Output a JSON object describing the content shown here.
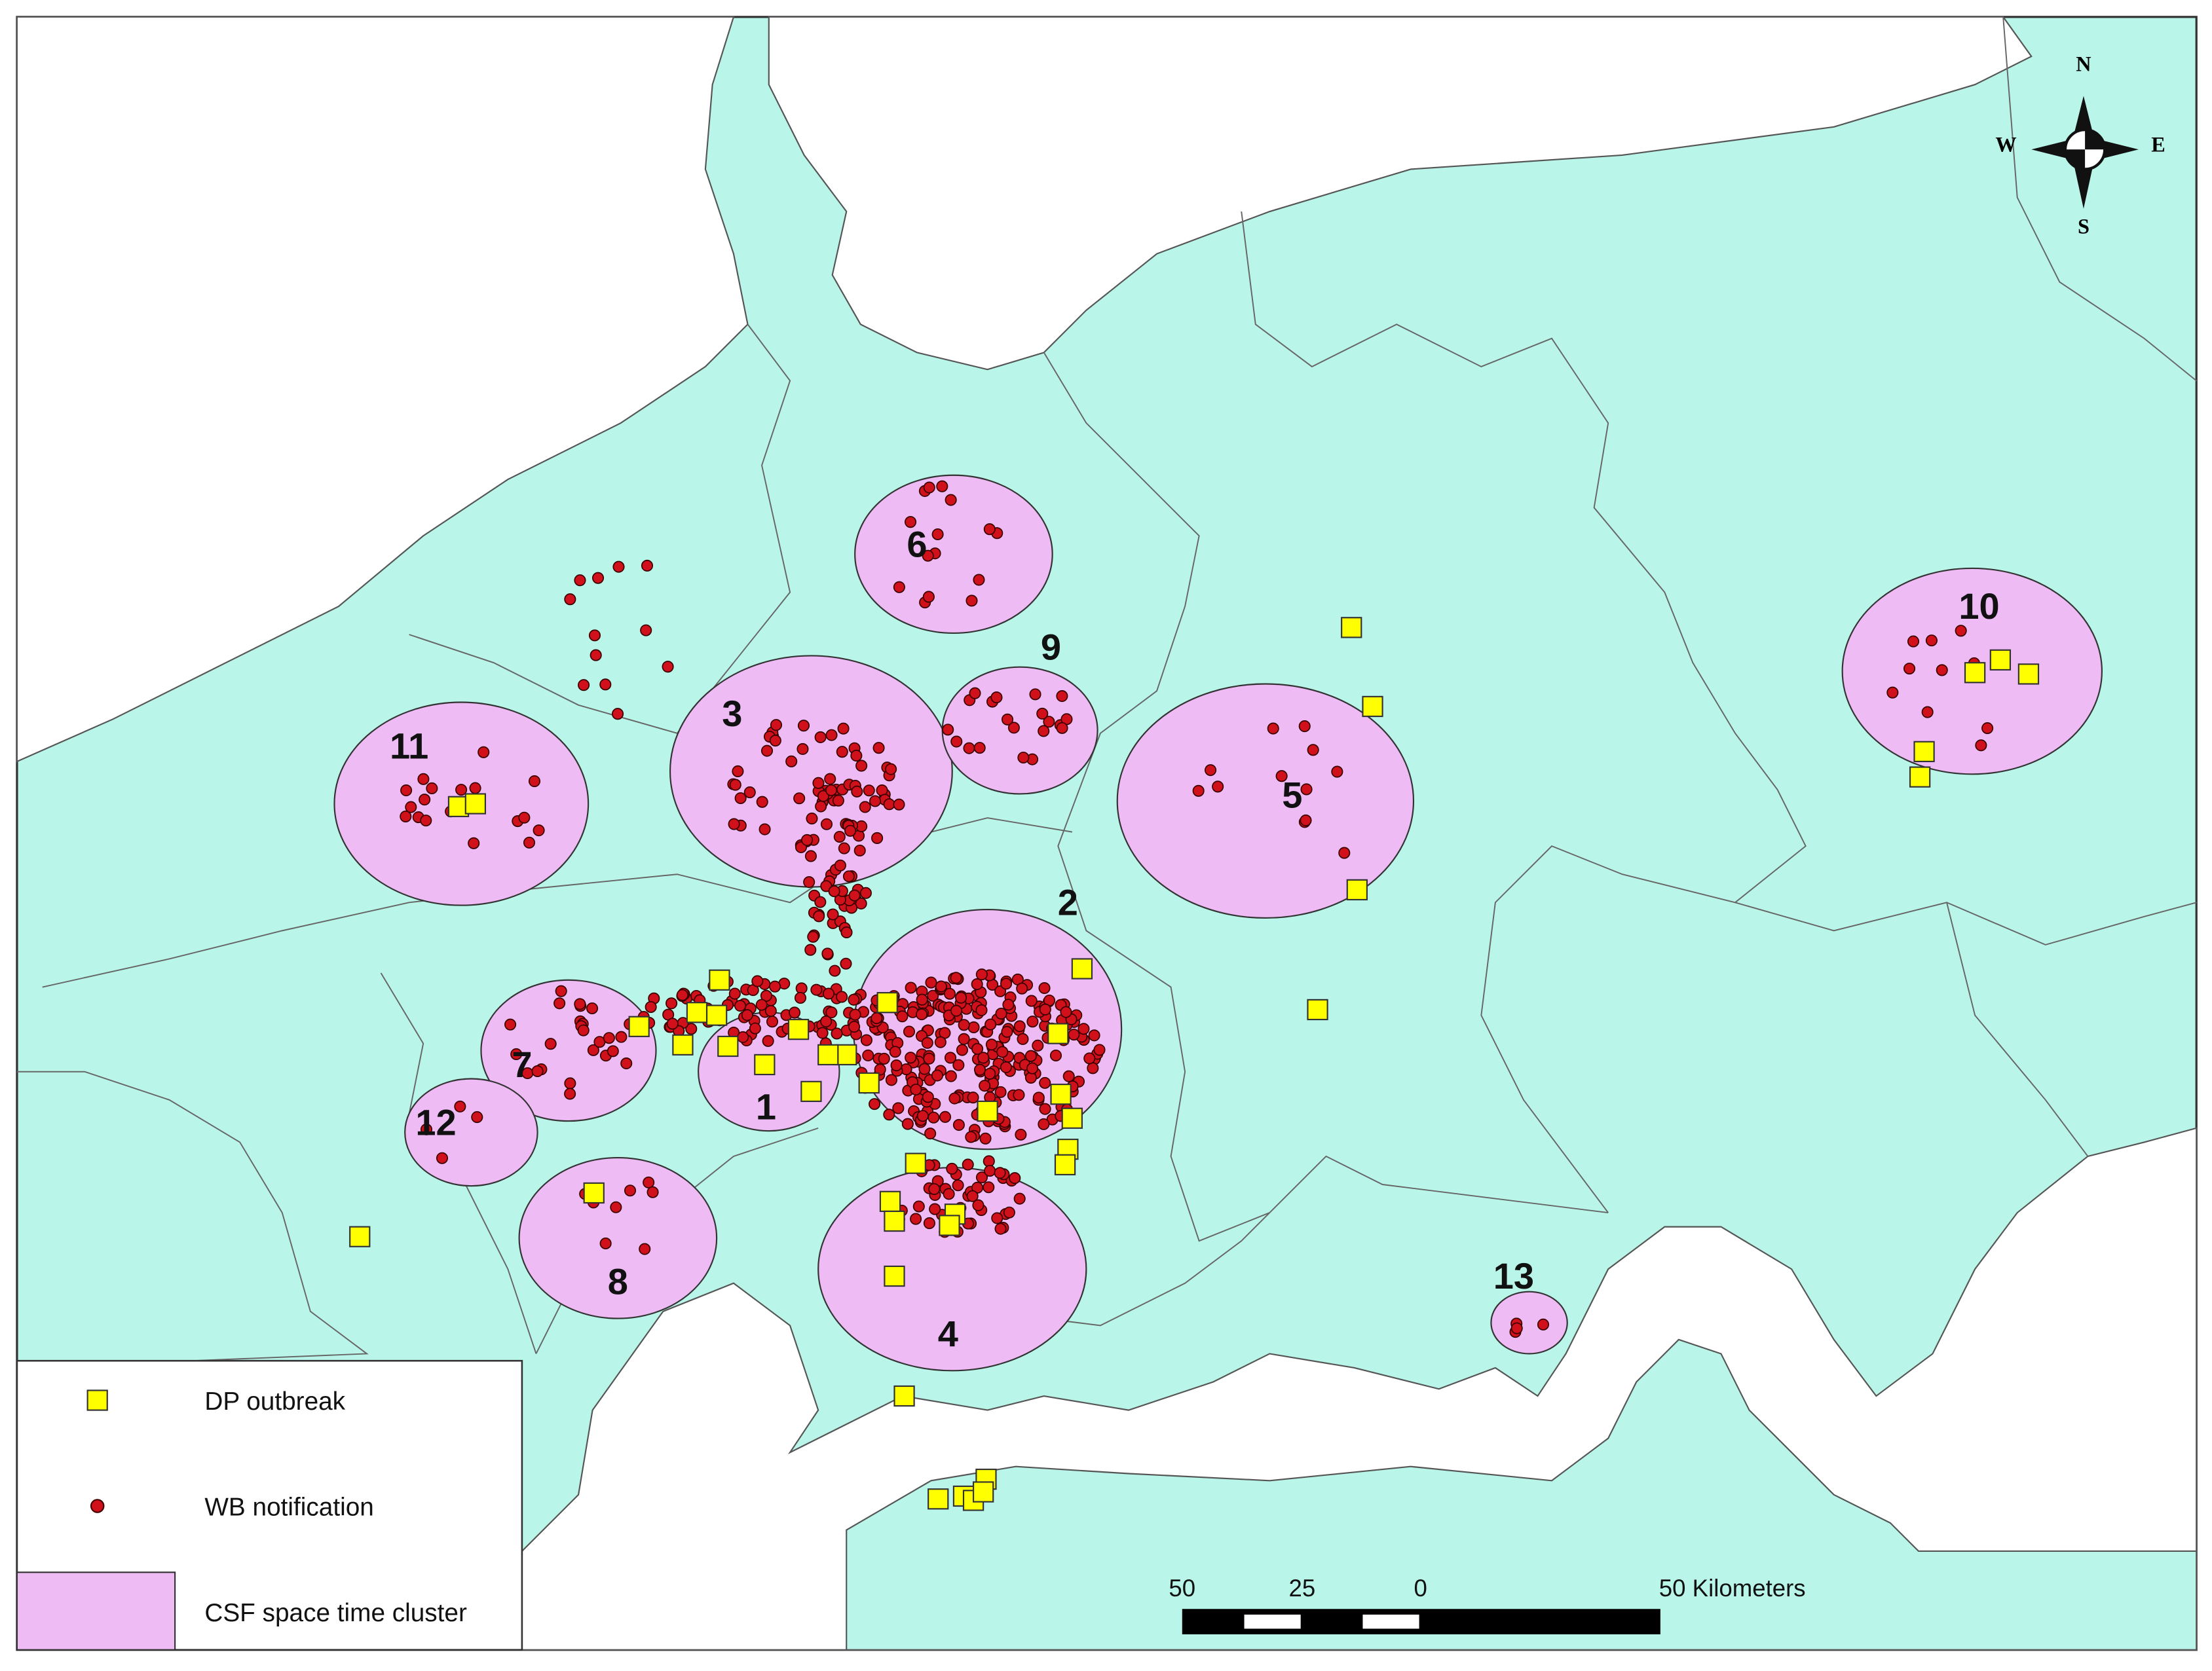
{
  "map": {
    "clusters": [
      {
        "label": "1"
      },
      {
        "label": "2"
      },
      {
        "label": "3"
      },
      {
        "label": "4"
      },
      {
        "label": "5"
      },
      {
        "label": "6"
      },
      {
        "label": "7"
      },
      {
        "label": "8"
      },
      {
        "label": "9"
      },
      {
        "label": "10"
      },
      {
        "label": "11"
      },
      {
        "label": "12"
      },
      {
        "label": "13"
      }
    ],
    "legend": [
      {
        "label": "DP outbreak"
      },
      {
        "label": "WB notification"
      },
      {
        "label": "CSF space time cluster"
      }
    ],
    "scale_bar": {
      "labels": [
        "50",
        "25",
        "0",
        "50 Kilometers"
      ]
    },
    "compass": {
      "n": "N",
      "s": "S",
      "w": "W",
      "e": "E"
    }
  }
}
